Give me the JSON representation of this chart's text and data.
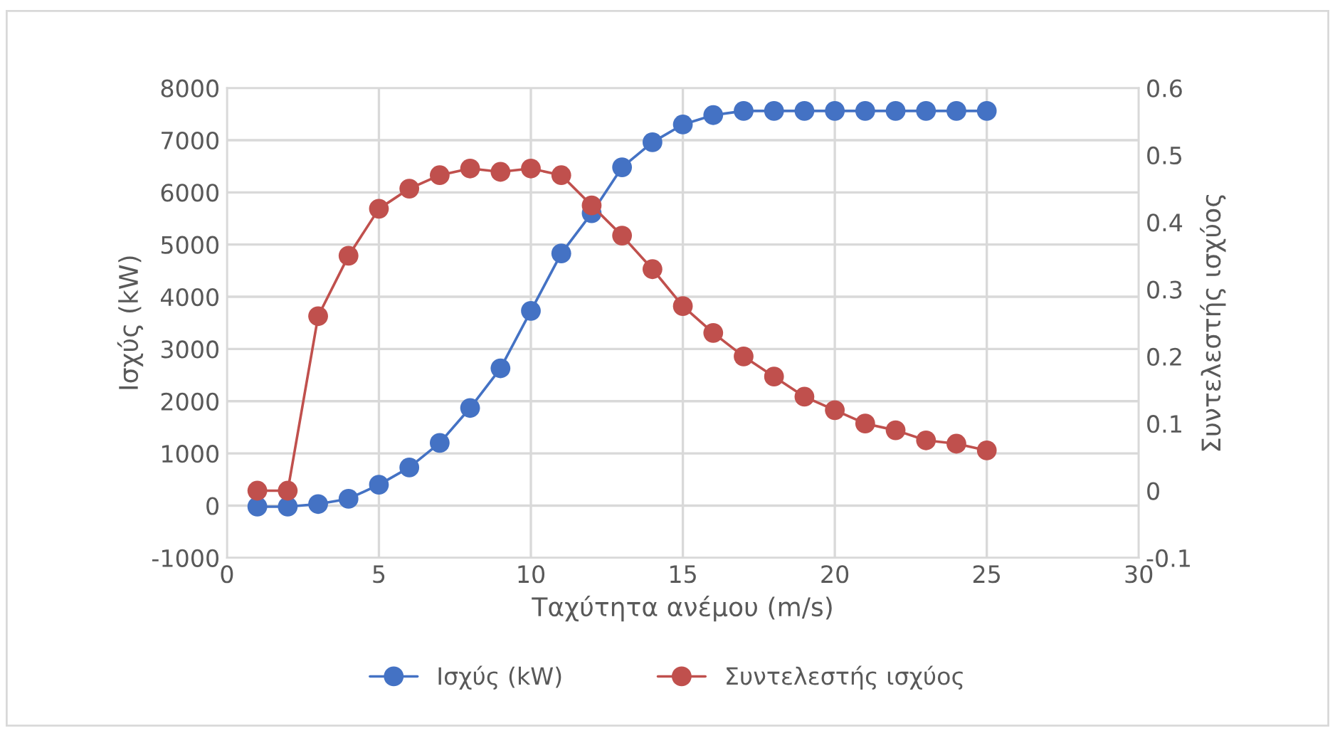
{
  "chart_data": {
    "type": "line",
    "xlabel": "Ταχύτητα ανέμου (m/s)",
    "ylabel": "Ισχύς (kW)",
    "y2label": "Συντελεστής ισχύος",
    "x": [
      1,
      2,
      3,
      4,
      5,
      6,
      7,
      8,
      9,
      10,
      11,
      12,
      13,
      14,
      15,
      16,
      17,
      18,
      19,
      20,
      21,
      22,
      23,
      24,
      25
    ],
    "series": [
      {
        "name": "Ισχύς (kW)",
        "color": "#4472c4",
        "values": [
          -20,
          -20,
          30,
          130,
          400,
          730,
          1200,
          1870,
          2630,
          3730,
          4830,
          5600,
          6480,
          6960,
          7300,
          7480,
          7560,
          7560,
          7560,
          7560,
          7560,
          7560,
          7560,
          7560,
          7560
        ]
      },
      {
        "name": "Συντελεστής ισχύος",
        "color": "#c0504d",
        "axis": "y2",
        "values": [
          0.0,
          0.0,
          0.26,
          0.35,
          0.42,
          0.45,
          0.47,
          0.48,
          0.475,
          0.48,
          0.47,
          0.425,
          0.38,
          0.33,
          0.275,
          0.235,
          0.2,
          0.17,
          0.14,
          0.12,
          0.1,
          0.09,
          0.075,
          0.07,
          0.06
        ]
      }
    ],
    "xlim": [
      0,
      30
    ],
    "xticks": [
      0,
      5,
      10,
      15,
      20,
      25,
      30
    ],
    "ylim": [
      -1000,
      8000
    ],
    "yticks": [
      -1000,
      0,
      1000,
      2000,
      3000,
      4000,
      5000,
      6000,
      7000,
      8000
    ],
    "y2lim": [
      -0.1,
      0.6
    ],
    "y2ticks": [
      -0.1,
      0,
      0.1,
      0.2,
      0.3,
      0.4,
      0.5,
      0.6
    ],
    "grid": true,
    "legend": "bottom",
    "marker": "circle",
    "line_style": "solid"
  }
}
